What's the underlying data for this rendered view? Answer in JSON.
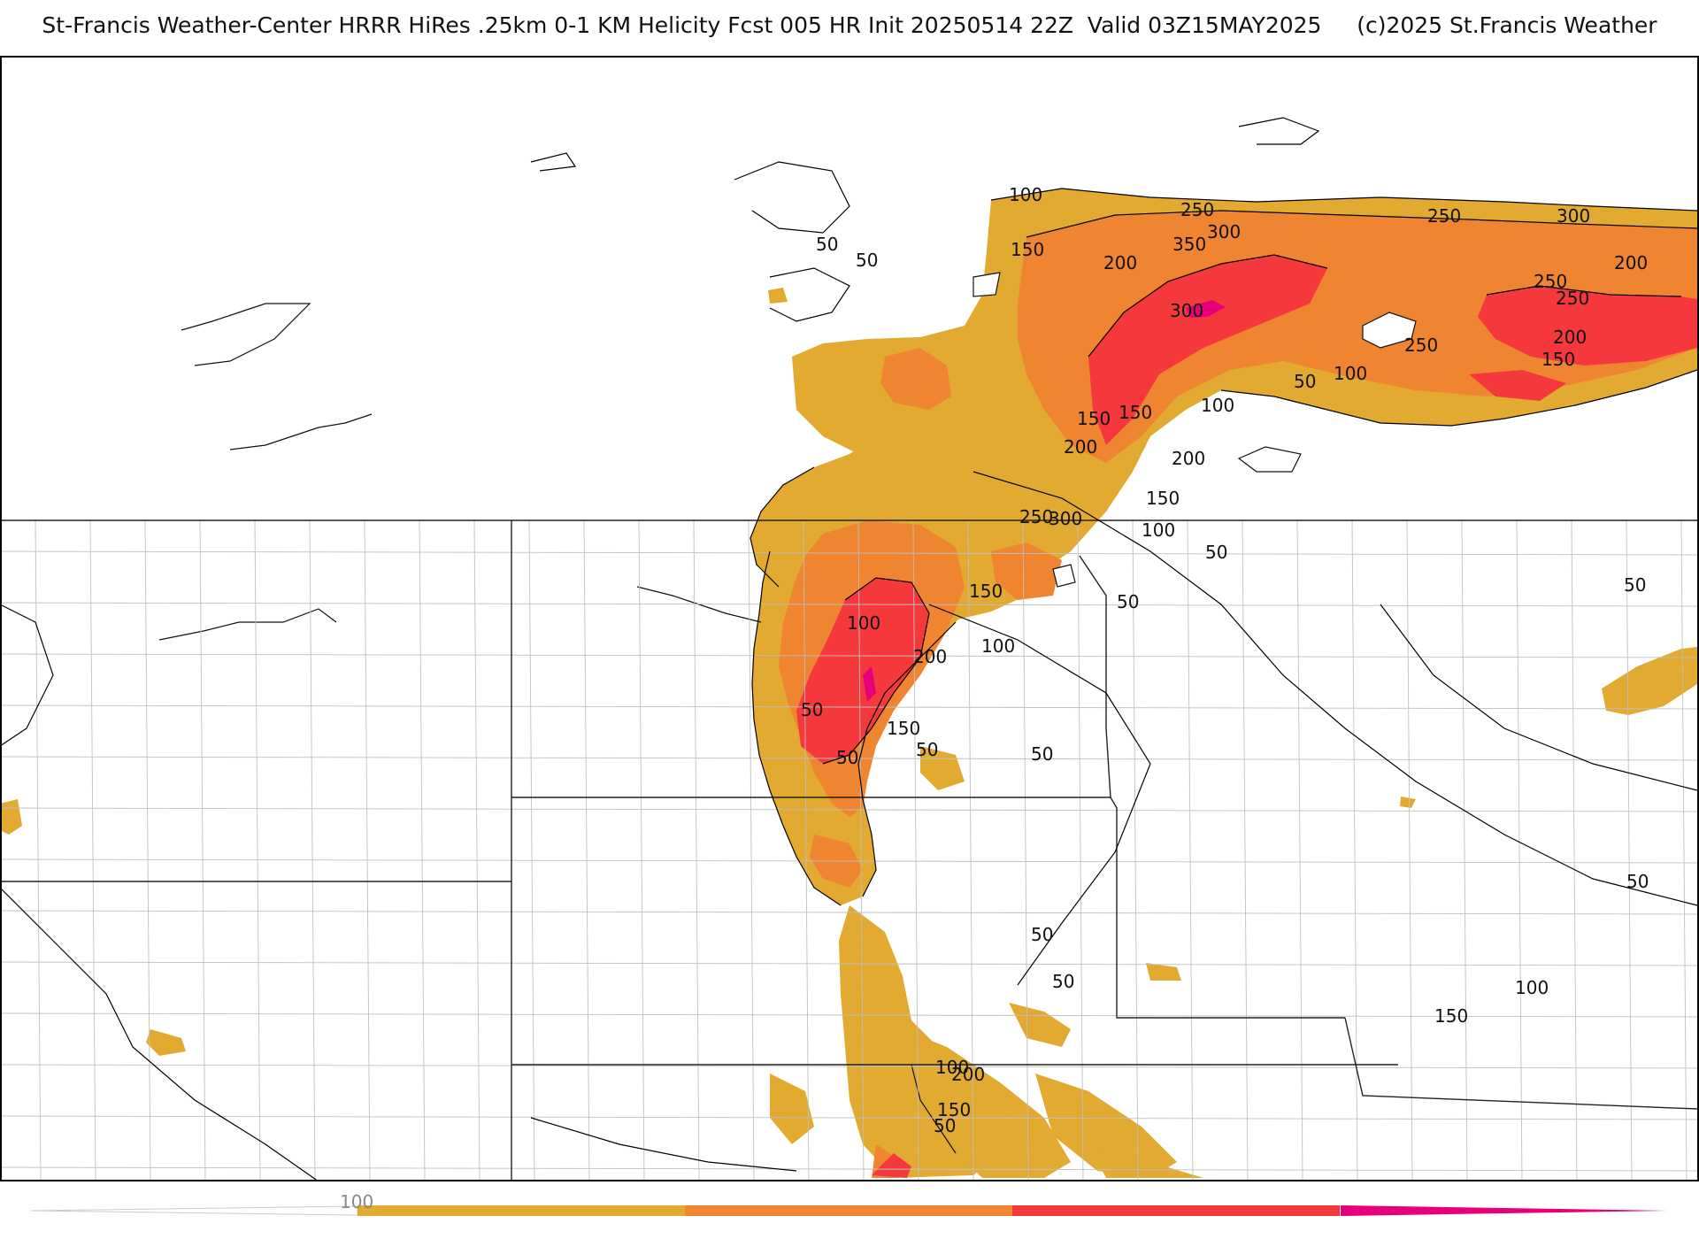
{
  "title": "St-Francis Weather-Center HRRR HiRes .25km 0-1 KM Helicity Fcst 005 HR Init 20250514 22Z  Valid 03Z15MAY2025     (c)2025 St.Francis Weather",
  "colors": {
    "c50": "#e2aa30",
    "c150": "#ef8530",
    "c250": "#f4383b",
    "c350": "#e8007a",
    "contour": "#000000",
    "border": "#222222",
    "county": "#bfbfbf"
  },
  "colorbar": {
    "tick_label": "100",
    "colors": [
      "#e2aa30",
      "#ef8530",
      "#f4383b",
      "#e8007a"
    ]
  },
  "contour_labels": [
    "50",
    "50",
    "100",
    "150",
    "200",
    "250",
    "300",
    "350",
    "300",
    "250",
    "250",
    "250",
    "300",
    "200",
    "250",
    "200",
    "150",
    "100",
    "50",
    "100",
    "200",
    "150",
    "150",
    "200",
    "250",
    "300",
    "150",
    "100",
    "50",
    "50",
    "100",
    "150",
    "100",
    "200",
    "150",
    "50",
    "50",
    "50",
    "50",
    "50",
    "50",
    "50",
    "50",
    "100",
    "150",
    "100",
    "150",
    "200",
    "50"
  ]
}
